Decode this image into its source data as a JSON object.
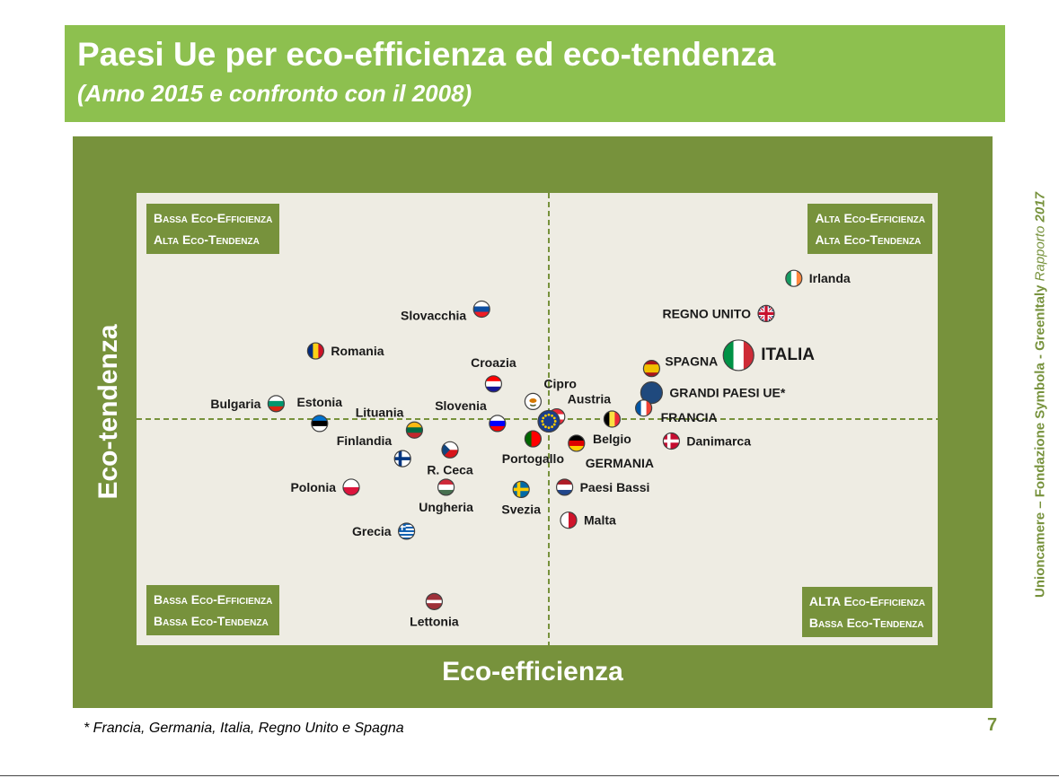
{
  "title": "Paesi Ue per eco-efficienza ed eco-tendenza",
  "subtitle": "(Anno 2015 e confronto con il 2008)",
  "side_text": {
    "prefix": "Unioncamere – Fondazione Symbola - GreenItaly ",
    "italic": "Rapporto",
    "year": " 2017"
  },
  "footnote": "* Francia, Germania, Italia, Regno Unito e Spagna",
  "page_number": "7",
  "colors": {
    "title_bar": "#8dc04f",
    "frame": "#77923c",
    "plot_bg": "#eeece3"
  },
  "chart_data": {
    "type": "scatter",
    "xlabel": "Eco-efficienza",
    "ylabel": "Eco-tendenza",
    "quadrants": {
      "top_left": [
        "Bassa Eco-Efficienza",
        "Alta Eco-Tendenza"
      ],
      "top_right": [
        "Alta Eco-Efficienza",
        "Alta Eco-Tendenza"
      ],
      "bottom_left": [
        "Bassa Eco-Efficienza",
        "Bassa Eco-Tendenza"
      ],
      "bottom_right": [
        "ALTA Eco-Efficienza",
        "Bassa Eco-Tendenza"
      ]
    },
    "x_range": [
      -1,
      1
    ],
    "y_range": [
      -1,
      1
    ],
    "points": [
      {
        "name": "Irlanda",
        "x": 0.62,
        "y": 0.64,
        "label_pos": "right",
        "flag": "ie"
      },
      {
        "name": "REGNO UNITO",
        "x": 0.55,
        "y": 0.48,
        "label_pos": "left",
        "flag": "uk"
      },
      {
        "name": "ITALIA",
        "x": 0.48,
        "y": 0.29,
        "label_pos": "right",
        "flag": "it",
        "size": "big"
      },
      {
        "name": "SPAGNA",
        "x": 0.26,
        "y": 0.23,
        "label_pos": "right-up",
        "flag": "es"
      },
      {
        "name": "GRANDI PAESI UE*",
        "x": 0.26,
        "y": 0.12,
        "label_pos": "right",
        "flag": "eu-big"
      },
      {
        "name": "FRANCIA",
        "x": 0.24,
        "y": 0.05,
        "label_pos": "right-down",
        "flag": "fr"
      },
      {
        "name": "Belgio",
        "x": 0.16,
        "y": 0.0,
        "label_pos": "below",
        "flag": "be"
      },
      {
        "name": "Danimarca",
        "x": 0.31,
        "y": -0.1,
        "label_pos": "right",
        "flag": "dk"
      },
      {
        "name": "GERMANIA",
        "x": 0.07,
        "y": -0.11,
        "label_pos": "below-right",
        "flag": "de"
      },
      {
        "name": "Paesi Bassi",
        "x": 0.04,
        "y": -0.31,
        "label_pos": "right",
        "flag": "nl"
      },
      {
        "name": "Malta",
        "x": 0.05,
        "y": -0.46,
        "label_pos": "right",
        "flag": "mt"
      },
      {
        "name": "Austria",
        "x": 0.02,
        "y": 0.01,
        "label_pos": "above-right",
        "flag": "at"
      },
      {
        "name": "UE",
        "x": 0.0,
        "y": -0.01,
        "label_pos": "none",
        "flag": "eu"
      },
      {
        "name": "Cipro",
        "x": -0.04,
        "y": 0.08,
        "label_pos": "above-right",
        "flag": "cy"
      },
      {
        "name": "Portogallo",
        "x": -0.04,
        "y": -0.09,
        "label_pos": "below",
        "flag": "pt"
      },
      {
        "name": "Svezia",
        "x": -0.07,
        "y": -0.32,
        "label_pos": "below",
        "flag": "se"
      },
      {
        "name": "Slovenia",
        "x": -0.13,
        "y": -0.02,
        "label_pos": "above-left",
        "flag": "si"
      },
      {
        "name": "Croazia",
        "x": -0.14,
        "y": 0.16,
        "label_pos": "above",
        "flag": "hr"
      },
      {
        "name": "Slovacchia",
        "x": -0.17,
        "y": 0.5,
        "label_pos": "left-down",
        "flag": "sk"
      },
      {
        "name": "R. Ceca",
        "x": -0.25,
        "y": -0.14,
        "label_pos": "below",
        "flag": "cz"
      },
      {
        "name": "Ungheria",
        "x": -0.26,
        "y": -0.31,
        "label_pos": "below",
        "flag": "hu"
      },
      {
        "name": "Lettonia",
        "x": -0.29,
        "y": -0.83,
        "label_pos": "below",
        "flag": "lv"
      },
      {
        "name": "Lituania",
        "x": -0.34,
        "y": -0.05,
        "label_pos": "above-left",
        "flag": "lt"
      },
      {
        "name": "Grecia",
        "x": -0.36,
        "y": -0.51,
        "label_pos": "left",
        "flag": "gr"
      },
      {
        "name": "Finlandia",
        "x": -0.37,
        "y": -0.18,
        "label_pos": "above-left",
        "flag": "fi"
      },
      {
        "name": "Estonia",
        "x": -0.58,
        "y": -0.02,
        "label_pos": "above",
        "flag": "ee"
      },
      {
        "name": "Bulgaria",
        "x": -0.69,
        "y": 0.07,
        "label_pos": "left",
        "flag": "bg"
      },
      {
        "name": "Polonia",
        "x": -0.5,
        "y": -0.31,
        "label_pos": "left",
        "flag": "pl"
      },
      {
        "name": "Romania",
        "x": -0.59,
        "y": 0.31,
        "label_pos": "right",
        "flag": "ro"
      }
    ]
  }
}
